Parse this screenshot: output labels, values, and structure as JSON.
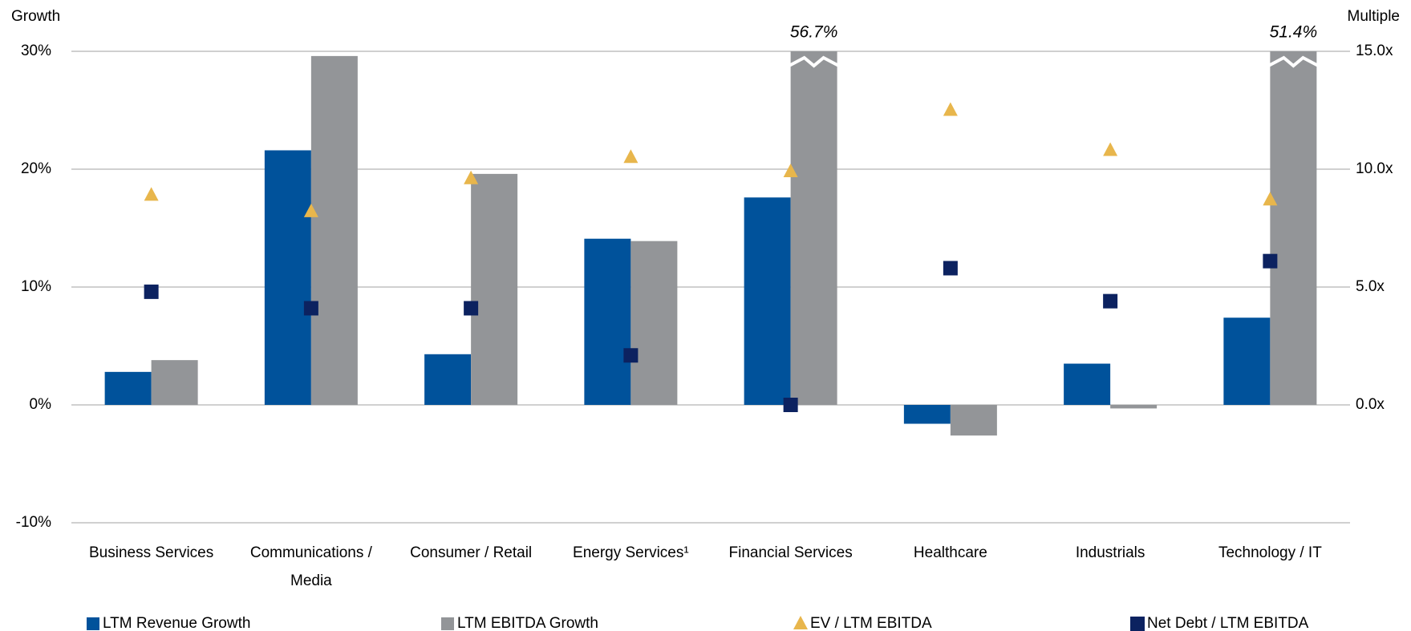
{
  "chart_data": {
    "type": "bar",
    "y_axis_label": "Growth",
    "y2_axis_label": "Multiple",
    "categories": [
      "Business Services",
      "Communications / Media",
      "Consumer / Retail",
      "Energy Services¹",
      "Financial Services",
      "Healthcare",
      "Industrials",
      "Technology / IT"
    ],
    "ylim": [
      -10,
      30
    ],
    "yticks": [
      {
        "value": -10,
        "label": "-10%"
      },
      {
        "value": 0,
        "label": "0%"
      },
      {
        "value": 10,
        "label": "10%"
      },
      {
        "value": 20,
        "label": "20%"
      },
      {
        "value": 30,
        "label": "30%"
      }
    ],
    "y2lim": [
      -5,
      15
    ],
    "y2ticks": [
      {
        "value": 0,
        "label": "0.0x"
      },
      {
        "value": 5,
        "label": "5.0x"
      },
      {
        "value": 10,
        "label": "10.0x"
      },
      {
        "value": 15,
        "label": "15.0x"
      }
    ],
    "grid": true,
    "series": [
      {
        "name": "LTM Revenue Growth",
        "type": "bar",
        "color": "#00529b",
        "values": [
          2.8,
          21.6,
          4.3,
          14.1,
          17.6,
          -1.6,
          3.5,
          7.4
        ]
      },
      {
        "name": "LTM EBITDA Growth",
        "type": "bar",
        "color": "#939598",
        "values": [
          3.8,
          29.6,
          19.6,
          13.9,
          56.7,
          -2.6,
          -0.3,
          51.4
        ],
        "value_labels": [
          null,
          null,
          null,
          null,
          "56.7%",
          null,
          null,
          "51.4%"
        ]
      },
      {
        "name": "EV / LTM EBITDA",
        "type": "scatter",
        "marker": "triangle",
        "axis": "y2",
        "color": "#e8b64c",
        "values": [
          8.9,
          8.2,
          9.6,
          10.5,
          9.9,
          12.5,
          10.8,
          8.7
        ]
      },
      {
        "name": "Net Debt / LTM EBITDA",
        "type": "scatter",
        "marker": "square",
        "axis": "y2",
        "color": "#0c2260",
        "values": [
          4.8,
          4.1,
          4.1,
          2.1,
          0.0,
          5.8,
          4.4,
          6.1
        ]
      }
    ]
  }
}
